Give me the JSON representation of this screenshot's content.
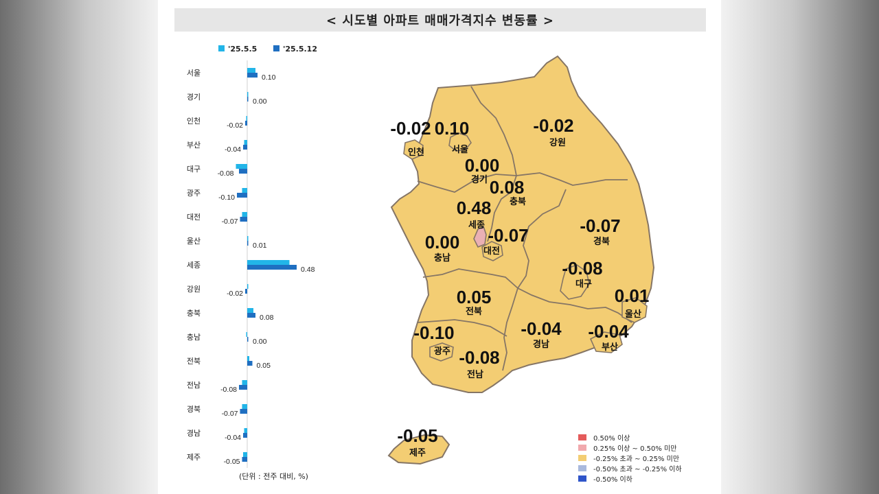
{
  "title": "< 시도별 아파트 매매가격지수 변동률 >",
  "unit_note": "(단위 : 전주 대비, %)",
  "chart_data": {
    "type": "bar",
    "orientation": "horizontal",
    "categories": [
      "서울",
      "경기",
      "인천",
      "부산",
      "대구",
      "광주",
      "대전",
      "울산",
      "세종",
      "강원",
      "충북",
      "충남",
      "전북",
      "전남",
      "경북",
      "경남",
      "제주"
    ],
    "series": [
      {
        "name": "'25.5.5",
        "color": "#22b5e8",
        "values": [
          0.08,
          0.01,
          -0.01,
          -0.03,
          -0.11,
          -0.05,
          -0.05,
          0.0,
          0.41,
          0.0,
          0.06,
          -0.01,
          0.02,
          -0.05,
          -0.05,
          -0.03,
          -0.04
        ]
      },
      {
        "name": "'25.5.12",
        "color": "#1f6fc1",
        "values": [
          0.1,
          0.0,
          -0.02,
          -0.04,
          -0.08,
          -0.1,
          -0.07,
          0.01,
          0.48,
          -0.02,
          0.08,
          0.0,
          0.05,
          -0.08,
          -0.07,
          -0.04,
          -0.05
        ]
      }
    ],
    "data_labels": [
      "0.10",
      "0.00",
      "-0.02",
      "-0.04",
      "-0.08",
      "-0.10",
      "-0.07",
      "0.01",
      "0.48",
      "-0.02",
      "0.08",
      "0.00",
      "0.05",
      "-0.08",
      "-0.07",
      "-0.04",
      "-0.05"
    ],
    "legend_position": "top",
    "grid": false
  },
  "map": {
    "regions": [
      {
        "name": "인천",
        "value": "-0.02"
      },
      {
        "name": "서울",
        "value": "0.10"
      },
      {
        "name": "강원",
        "value": "-0.02"
      },
      {
        "name": "경기",
        "value": "0.00"
      },
      {
        "name": "충북",
        "value": "0.08"
      },
      {
        "name": "세종",
        "value": "0.48"
      },
      {
        "name": "대전",
        "value": "-0.07"
      },
      {
        "name": "경북",
        "value": "-0.07"
      },
      {
        "name": "충남",
        "value": "0.00"
      },
      {
        "name": "대구",
        "value": "-0.08"
      },
      {
        "name": "울산",
        "value": "0.01"
      },
      {
        "name": "전북",
        "value": "0.05"
      },
      {
        "name": "경남",
        "value": "-0.04"
      },
      {
        "name": "부산",
        "value": "-0.04"
      },
      {
        "name": "광주",
        "value": "-0.10"
      },
      {
        "name": "전남",
        "value": "-0.08"
      },
      {
        "name": "제주",
        "value": "-0.05"
      }
    ],
    "fill_color": "#f3cd73",
    "highlight_color": "#eab0b4",
    "border_color": "#857565"
  },
  "map_legend": [
    {
      "label": "0.50% 이상",
      "color": "#e45b5b"
    },
    {
      "label": "0.25% 이상 ~ 0.50% 미만",
      "color": "#f1a9ad"
    },
    {
      "label": "-0.25% 초과 ~ 0.25% 미만",
      "color": "#f3cd73"
    },
    {
      "label": "-0.50% 초과 ~ -0.25% 이하",
      "color": "#a9b9dd"
    },
    {
      "label": "-0.50% 이하",
      "color": "#2f55c9"
    }
  ]
}
